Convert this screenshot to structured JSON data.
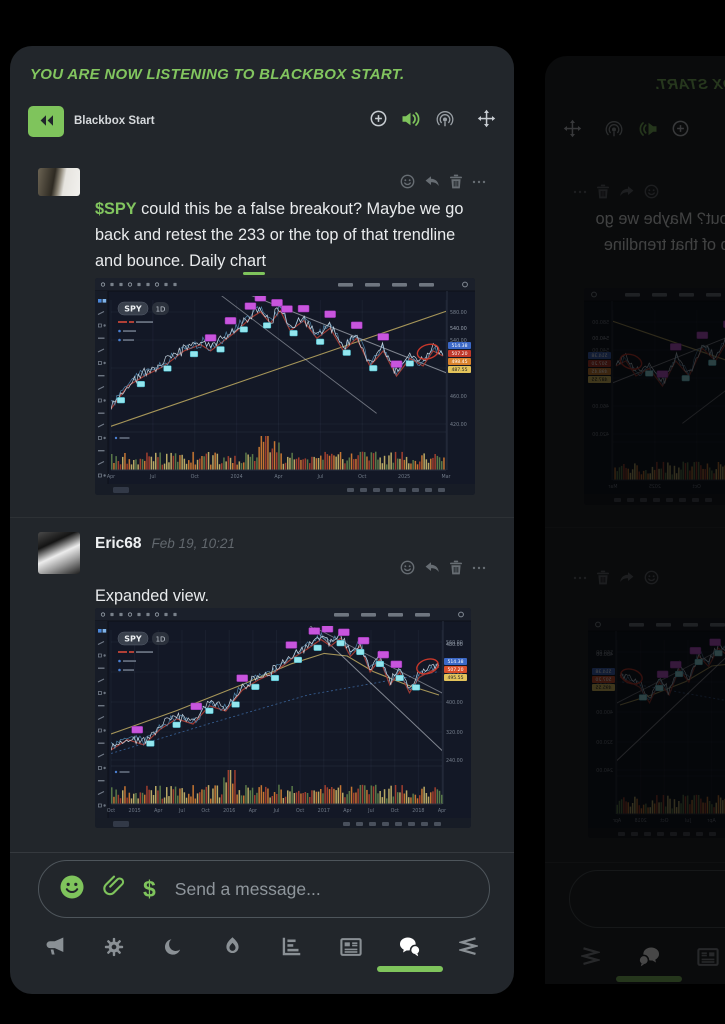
{
  "app": {
    "background": "#000000",
    "card_background": "#22262b",
    "accent_green": "#7fc45c"
  },
  "banner": {
    "title": "YOU ARE NOW LISTENING TO BLACKBOX START."
  },
  "player": {
    "name": "Blackbox Start",
    "icons": [
      "rewind-icon",
      "add-circle-icon",
      "volume-icon",
      "broadcast-icon",
      "move-icon"
    ]
  },
  "message_actions": [
    "smiley-reaction-icon",
    "reply-icon",
    "delete-icon",
    "more-icon"
  ],
  "messages": [
    {
      "ticker": "$SPY",
      "text": " could this be a false breakout? Maybe we go back and retest the 233 or the top of that trendline and bounce. Daily chart",
      "chart": {
        "symbol": "SPY",
        "timeframe": "1D",
        "y_labels": [
          "580.00",
          "540.00",
          "500.00",
          "460.00",
          "420.00"
        ],
        "x_labels": [
          "Apr",
          "Jul",
          "Oct",
          "2024",
          "Apr",
          "Jul",
          "Oct",
          "2025",
          "Mar"
        ],
        "price_tags": [
          {
            "label": "514.38",
            "color": "#3b68c6"
          },
          {
            "label": "507.20",
            "color": "#c0392b"
          },
          {
            "label": "498.45",
            "color": "#d9822b"
          },
          {
            "label": "487.55",
            "color": "#e3c35a"
          }
        ]
      }
    },
    {
      "author": "Eric68",
      "timestamp": "Feb 19, 10:21",
      "text": "Expanded view.",
      "chart": {
        "symbol": "SPY",
        "timeframe": "1D",
        "y_labels": [
          "560.00",
          "480.00",
          "400.00",
          "320.00",
          "240.00"
        ],
        "x_labels": [
          "Oct",
          "2015",
          "Apr",
          "Jul",
          "Oct",
          "2016",
          "Apr",
          "Jul",
          "Oct",
          "2017",
          "Apr",
          "Jul",
          "Oct",
          "2018",
          "Apr"
        ],
        "price_tags": [
          {
            "label": "514.38",
            "color": "#3b68c6"
          },
          {
            "label": "507.20",
            "color": "#d9502b"
          },
          {
            "label": "495.55",
            "color": "#e3c35a"
          }
        ]
      }
    }
  ],
  "composer": {
    "placeholder": "Send a message..."
  },
  "bottom_nav": {
    "items": [
      "announcements",
      "settings",
      "dark-mode",
      "trending",
      "charts",
      "news",
      "chat",
      "streams"
    ],
    "active": "chat"
  }
}
